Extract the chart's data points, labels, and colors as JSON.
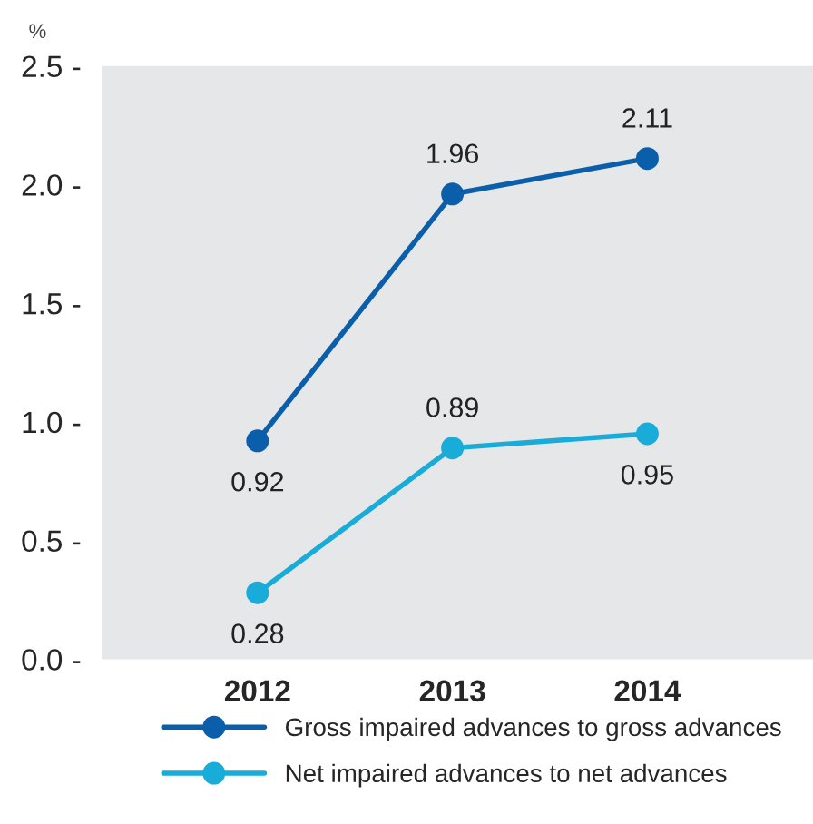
{
  "chart_data": {
    "type": "line",
    "ylabel": "%",
    "categories": [
      "2012",
      "2013",
      "2014"
    ],
    "series": [
      {
        "name": "Gross impaired advances to gross advances",
        "color": "#0b5faa",
        "values": [
          0.92,
          1.96,
          2.11
        ]
      },
      {
        "name": "Net impaired advances to net advances",
        "color": "#19acd9",
        "values": [
          0.28,
          0.89,
          0.95
        ]
      }
    ],
    "ylim": [
      0,
      2.5
    ],
    "yticks": [
      {
        "value": 0,
        "label": "0.0 -"
      },
      {
        "value": 0.5,
        "label": "0.5 -"
      },
      {
        "value": 1.0,
        "label": "1.0 -"
      },
      {
        "value": 1.5,
        "label": "1.5 -"
      },
      {
        "value": 2.0,
        "label": "2.0 -"
      },
      {
        "value": 2.5,
        "label": "2.5 -"
      }
    ],
    "data_labels": true,
    "marker": "circle",
    "line_style": "solid",
    "grid": false,
    "legend": "bottom"
  }
}
